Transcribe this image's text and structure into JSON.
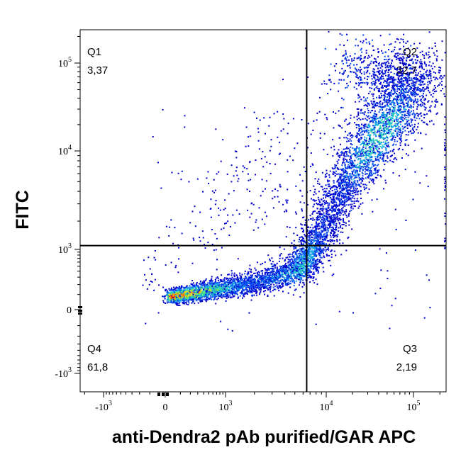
{
  "chart_data": {
    "type": "scatter",
    "subtype": "flow-cytometry-density-dot-plot",
    "xlabel": "anti-Dendra2 pAb purified/GAR APC",
    "ylabel": "FITC",
    "scale": "biexponential (log with linear region near 0)",
    "grid": false,
    "x_ticks": [
      {
        "value": -1000,
        "base": "-10",
        "exp": "3"
      },
      {
        "value": 0,
        "base": "0",
        "exp": ""
      },
      {
        "value": 1000,
        "base": "10",
        "exp": "3"
      },
      {
        "value": 10000,
        "base": "10",
        "exp": "4"
      },
      {
        "value": 100000,
        "base": "10",
        "exp": "5"
      }
    ],
    "y_ticks": [
      {
        "value": 100000,
        "base": "10",
        "exp": "5"
      },
      {
        "value": 10000,
        "base": "10",
        "exp": "4"
      },
      {
        "value": 1000,
        "base": "10",
        "exp": "3"
      },
      {
        "value": 0,
        "base": "0",
        "exp": ""
      },
      {
        "value": -1000,
        "base": "-10",
        "exp": "3"
      }
    ],
    "gates": {
      "x": 6500,
      "y": 1100
    },
    "quadrants": [
      {
        "name": "Q1",
        "percent": "3,37"
      },
      {
        "name": "Q2",
        "percent": "32,7"
      },
      {
        "name": "Q3",
        "percent": "2,19"
      },
      {
        "name": "Q4",
        "percent": "61,8"
      }
    ],
    "density_colors": [
      "#0000cc",
      "#0a4cf0",
      "#16a6e6",
      "#2fd7b0",
      "#7fe84a",
      "#e6e61a",
      "#ff8a00",
      "#ff2200"
    ]
  }
}
